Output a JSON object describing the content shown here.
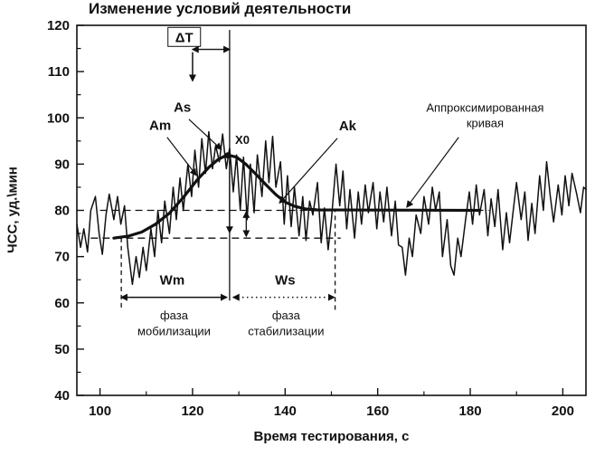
{
  "chart_data": {
    "type": "line",
    "title": "Изменение условий деятельности",
    "xlabel": "Время тестирования, с",
    "ylabel": "ЧСС, уд.\\мин",
    "xlim": [
      95,
      205
    ],
    "ylim": [
      40,
      120
    ],
    "x_ticks": [
      100,
      120,
      140,
      160,
      180,
      200
    ],
    "x_minor_ticks": [
      110,
      130,
      150,
      170,
      190
    ],
    "y_ticks": [
      40,
      50,
      60,
      70,
      80,
      90,
      100,
      110,
      120
    ],
    "y_minor_ticks": [
      45,
      55,
      65,
      75,
      85,
      95,
      105,
      115
    ],
    "grid": false,
    "legend": "none",
    "series": [
      {
        "id": "hr-signal-line",
        "name": "ЧСС сигнал",
        "width": 1.5,
        "points": [
          [
            95,
            77
          ],
          [
            95.8,
            72
          ],
          [
            96.5,
            76
          ],
          [
            97.3,
            71
          ],
          [
            98,
            80
          ],
          [
            99,
            83
          ],
          [
            99.8,
            75
          ],
          [
            100.5,
            70.5
          ],
          [
            101.3,
            79
          ],
          [
            102,
            83.5
          ],
          [
            103,
            78
          ],
          [
            103.8,
            83
          ],
          [
            104.5,
            77
          ],
          [
            105.3,
            81
          ],
          [
            106,
            72
          ],
          [
            107,
            64
          ],
          [
            107.8,
            70
          ],
          [
            108.5,
            65.5
          ],
          [
            109.3,
            72
          ],
          [
            110,
            67
          ],
          [
            111,
            76
          ],
          [
            111.8,
            70
          ],
          [
            112.5,
            80
          ],
          [
            113.3,
            73
          ],
          [
            114,
            82
          ],
          [
            115,
            75
          ],
          [
            115.8,
            85
          ],
          [
            116.5,
            78
          ],
          [
            117.3,
            87
          ],
          [
            118,
            80
          ],
          [
            119,
            90
          ],
          [
            119.8,
            83
          ],
          [
            120.5,
            93
          ],
          [
            121.3,
            85
          ],
          [
            122,
            95.5
          ],
          [
            122.8,
            88
          ],
          [
            123.5,
            97
          ],
          [
            124.3,
            89
          ],
          [
            125,
            94
          ],
          [
            125.8,
            90.5
          ],
          [
            126.5,
            96.5
          ],
          [
            127.3,
            89
          ],
          [
            128,
            93.5
          ],
          [
            128.8,
            84
          ],
          [
            129.5,
            92
          ],
          [
            130.3,
            80
          ],
          [
            131,
            91.5
          ],
          [
            131.8,
            78
          ],
          [
            132.5,
            90
          ],
          [
            133.3,
            79.5
          ],
          [
            134,
            92
          ],
          [
            135,
            83
          ],
          [
            135.8,
            95
          ],
          [
            136.5,
            86
          ],
          [
            137.3,
            96
          ],
          [
            138,
            85
          ],
          [
            139,
            90.5
          ],
          [
            139.8,
            77
          ],
          [
            140.5,
            87.5
          ],
          [
            141.3,
            76.5
          ],
          [
            142,
            85
          ],
          [
            143,
            74.5
          ],
          [
            143.8,
            83
          ],
          [
            144.5,
            73.5
          ],
          [
            145.3,
            82
          ],
          [
            146,
            79
          ],
          [
            147,
            86
          ],
          [
            147.8,
            73
          ],
          [
            148.5,
            80.5
          ],
          [
            149.3,
            71.5
          ],
          [
            150,
            78
          ],
          [
            151,
            90
          ],
          [
            151.8,
            81
          ],
          [
            152.5,
            88.5
          ],
          [
            153.3,
            76
          ],
          [
            154,
            84.5
          ],
          [
            155,
            74
          ],
          [
            155.8,
            84
          ],
          [
            156.5,
            77
          ],
          [
            157.3,
            85.5
          ],
          [
            158,
            79.5
          ],
          [
            159,
            86
          ],
          [
            159.8,
            76
          ],
          [
            160.5,
            84
          ],
          [
            161.3,
            77.5
          ],
          [
            162,
            85
          ],
          [
            163,
            74.5
          ],
          [
            163.8,
            82
          ],
          [
            164.5,
            72.5
          ],
          [
            165.3,
            72
          ],
          [
            166,
            66
          ],
          [
            166.8,
            74
          ],
          [
            167.5,
            70
          ],
          [
            168.3,
            79
          ],
          [
            169.3,
            75
          ],
          [
            170,
            83
          ],
          [
            171,
            77
          ],
          [
            171.8,
            85
          ],
          [
            172.5,
            80
          ],
          [
            173.3,
            84
          ],
          [
            174,
            70
          ],
          [
            175,
            78
          ],
          [
            175.8,
            68
          ],
          [
            176.5,
            66
          ],
          [
            177.3,
            74
          ],
          [
            178,
            70
          ],
          [
            179,
            78
          ],
          [
            179.8,
            84
          ],
          [
            180.5,
            77
          ],
          [
            181.3,
            85.5
          ],
          [
            182,
            79
          ],
          [
            183,
            84.5
          ],
          [
            183.8,
            74.5
          ],
          [
            184.5,
            82.5
          ],
          [
            185.3,
            76.5
          ],
          [
            186,
            84.5
          ],
          [
            187,
            71.5
          ],
          [
            187.8,
            79.5
          ],
          [
            188.5,
            73
          ],
          [
            189.3,
            80
          ],
          [
            190,
            86
          ],
          [
            191,
            78
          ],
          [
            191.8,
            84
          ],
          [
            192.5,
            73.5
          ],
          [
            193.3,
            81.5
          ],
          [
            194,
            75
          ],
          [
            195,
            87.5
          ],
          [
            195.8,
            80
          ],
          [
            196.5,
            90.5
          ],
          [
            197.3,
            83
          ],
          [
            198,
            77.5
          ],
          [
            199,
            85.5
          ],
          [
            199.8,
            79
          ],
          [
            200.5,
            87.5
          ],
          [
            201.3,
            81
          ],
          [
            202,
            88
          ],
          [
            203,
            83.5
          ],
          [
            203.8,
            79.5
          ],
          [
            204.5,
            85
          ],
          [
            205,
            84.5
          ]
        ]
      },
      {
        "id": "approx-curve-line",
        "name": "Аппроксимированная кривая",
        "width": 3.2,
        "points": [
          [
            103,
            74
          ],
          [
            106,
            74.4
          ],
          [
            109,
            75.3
          ],
          [
            112,
            77
          ],
          [
            115,
            79.4
          ],
          [
            118,
            82.8
          ],
          [
            121,
            86.6
          ],
          [
            123.5,
            89.3
          ],
          [
            125.5,
            91
          ],
          [
            127.5,
            92
          ],
          [
            129.5,
            91.5
          ],
          [
            131.5,
            90
          ],
          [
            133.5,
            88
          ],
          [
            136,
            85.4
          ],
          [
            138,
            83.4
          ],
          [
            140,
            81.8
          ],
          [
            142,
            80.9
          ],
          [
            144.5,
            80.3
          ],
          [
            147,
            80.1
          ],
          [
            182,
            80
          ]
        ]
      }
    ],
    "reference_lines": [
      {
        "name": "baseline-80-dashed",
        "type": "h",
        "y": 80,
        "x1": 100,
        "x2": 184,
        "style": "dashed"
      },
      {
        "name": "baseline-74-dashed",
        "type": "h",
        "y": 74,
        "x1": 98,
        "x2": 152,
        "style": "dashed"
      },
      {
        "name": "x0-vertical-line",
        "type": "v",
        "x": 128,
        "y1": 60.5,
        "y2": 119,
        "style": "solid"
      },
      {
        "name": "wm-left-dashed",
        "type": "v",
        "x": 104.6,
        "y1": 59,
        "y2": 74,
        "style": "dashed2"
      },
      {
        "name": "ws-right-dashed",
        "type": "v",
        "x": 150.8,
        "y1": 58.5,
        "y2": 79.8,
        "style": "dashed2"
      }
    ],
    "annotations": {
      "delta_t": {
        "label": "ΔT",
        "label_x": 118.2,
        "label_y": 117.4,
        "span_x1": 120,
        "span_x2": 128,
        "span_y": 114.8,
        "down_x": 120,
        "down_y1": 114.2,
        "down_y2": 108
      },
      "pointers": [
        {
          "id": "as-label",
          "label": "As",
          "label_x": 117.8,
          "label_y": 101.3,
          "from": [
            119.2,
            99.7
          ],
          "to": [
            126.2,
            93.2
          ]
        },
        {
          "id": "am-label",
          "label": "Am",
          "label_x": 113,
          "label_y": 97.4,
          "from": [
            114.5,
            95.8
          ],
          "to": [
            120.8,
            87.6
          ]
        },
        {
          "id": "ak-label",
          "label": "Ak",
          "label_x": 153.5,
          "label_y": 97.3,
          "from": [
            151.3,
            95.6
          ],
          "to": [
            138.8,
            81.6
          ]
        }
      ],
      "approx_curve_label": {
        "lines": [
          "Аппроксимированная",
          "кривая"
        ],
        "x": 183.2,
        "y": [
          101.3,
          98
        ],
        "from": [
          177.5,
          95.8
        ],
        "to": [
          166.3,
          80.7
        ]
      },
      "x0_label": {
        "label": "X0",
        "x": 129.2,
        "y": 94.4
      },
      "peak_marker": {
        "x": 127.6,
        "y": 91.9
      },
      "spans": [
        {
          "id": "wm-span",
          "label": "Wm",
          "x1": 104.6,
          "x2": 127.4,
          "y": 61.2,
          "label_x": 115.6,
          "label_y": 64,
          "style": "solid"
        },
        {
          "id": "ws-span",
          "label": "Ws",
          "x1": 128.8,
          "x2": 150.6,
          "y": 61.2,
          "label_x": 140,
          "label_y": 64,
          "style": "dotted"
        }
      ],
      "vertical_arrows": [
        {
          "id": "drop-arrow",
          "x": 128,
          "y1": 90.6,
          "y2": 75.2,
          "heads": "end"
        },
        {
          "id": "amplitude-arrow",
          "x": 131.6,
          "y1": 79.7,
          "y2": 74.4,
          "heads": "both"
        }
      ],
      "phase_labels": [
        {
          "id": "phase-mobilization",
          "lines": [
            "фаза",
            "мобилизации"
          ],
          "x": 116,
          "y": [
            56.4,
            53
          ]
        },
        {
          "id": "phase-stabilization",
          "lines": [
            "фаза",
            "стабилизации"
          ],
          "x": 140.2,
          "y": [
            56.4,
            53
          ]
        }
      ]
    }
  }
}
